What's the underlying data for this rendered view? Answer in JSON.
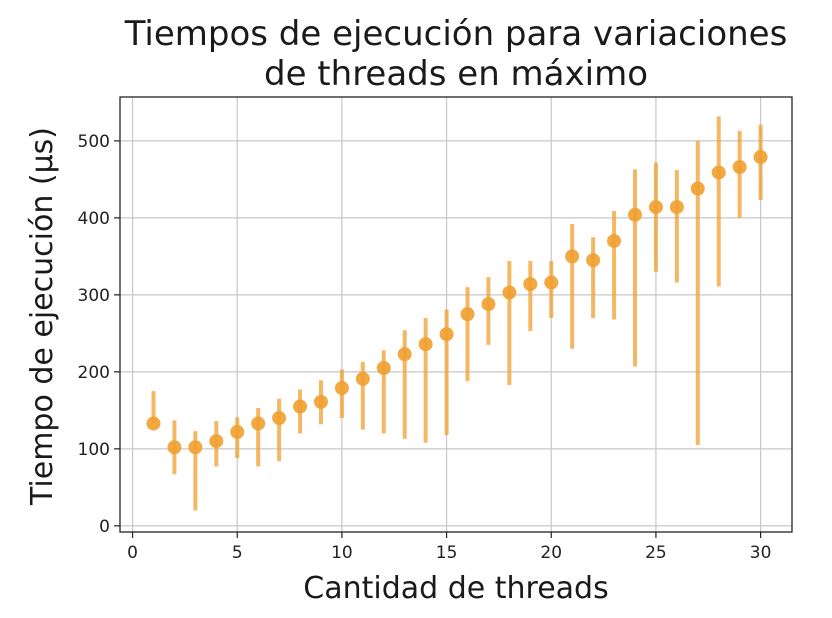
{
  "chart_data": {
    "type": "scatter",
    "title_line1": "Tiempos de ejecución para variaciones",
    "title_line2": "de threads en máximo",
    "xlabel": "Cantidad de threads",
    "ylabel": "Tiempo de ejecución (μs)",
    "xlim": [
      -0.6,
      31.5
    ],
    "ylim": [
      -8,
      557
    ],
    "xticks": [
      0,
      5,
      10,
      15,
      20,
      25,
      30
    ],
    "yticks": [
      0,
      100,
      200,
      300,
      400,
      500
    ],
    "grid": true,
    "marker_color": "#f0a030",
    "series": [
      {
        "points": [
          {
            "x": 1,
            "y": 133,
            "err_low": 133,
            "err_high": 175
          },
          {
            "x": 2,
            "y": 102,
            "err_low": 67,
            "err_high": 137
          },
          {
            "x": 3,
            "y": 102,
            "err_low": 20,
            "err_high": 123
          },
          {
            "x": 4,
            "y": 110,
            "err_low": 77,
            "err_high": 136
          },
          {
            "x": 5,
            "y": 122,
            "err_low": 88,
            "err_high": 141
          },
          {
            "x": 6,
            "y": 133,
            "err_low": 77,
            "err_high": 153
          },
          {
            "x": 7,
            "y": 140,
            "err_low": 84,
            "err_high": 165
          },
          {
            "x": 8,
            "y": 155,
            "err_low": 120,
            "err_high": 177
          },
          {
            "x": 9,
            "y": 161,
            "err_low": 132,
            "err_high": 189
          },
          {
            "x": 10,
            "y": 179,
            "err_low": 140,
            "err_high": 203
          },
          {
            "x": 11,
            "y": 191,
            "err_low": 125,
            "err_high": 213
          },
          {
            "x": 12,
            "y": 205,
            "err_low": 120,
            "err_high": 228
          },
          {
            "x": 13,
            "y": 223,
            "err_low": 113,
            "err_high": 254
          },
          {
            "x": 14,
            "y": 236,
            "err_low": 108,
            "err_high": 270
          },
          {
            "x": 15,
            "y": 249,
            "err_low": 118,
            "err_high": 281
          },
          {
            "x": 16,
            "y": 275,
            "err_low": 188,
            "err_high": 310
          },
          {
            "x": 17,
            "y": 288,
            "err_low": 235,
            "err_high": 323
          },
          {
            "x": 18,
            "y": 303,
            "err_low": 183,
            "err_high": 344
          },
          {
            "x": 19,
            "y": 314,
            "err_low": 253,
            "err_high": 344
          },
          {
            "x": 20,
            "y": 316,
            "err_low": 270,
            "err_high": 344
          },
          {
            "x": 21,
            "y": 350,
            "err_low": 230,
            "err_high": 392
          },
          {
            "x": 22,
            "y": 345,
            "err_low": 270,
            "err_high": 375
          },
          {
            "x": 23,
            "y": 370,
            "err_low": 268,
            "err_high": 409
          },
          {
            "x": 24,
            "y": 404,
            "err_low": 207,
            "err_high": 463
          },
          {
            "x": 25,
            "y": 414,
            "err_low": 330,
            "err_high": 472
          },
          {
            "x": 26,
            "y": 414,
            "err_low": 316,
            "err_high": 462
          },
          {
            "x": 27,
            "y": 438,
            "err_low": 105,
            "err_high": 500
          },
          {
            "x": 28,
            "y": 459,
            "err_low": 311,
            "err_high": 532
          },
          {
            "x": 29,
            "y": 466,
            "err_low": 400,
            "err_high": 513
          },
          {
            "x": 30,
            "y": 479,
            "err_low": 423,
            "err_high": 521
          }
        ]
      }
    ]
  }
}
